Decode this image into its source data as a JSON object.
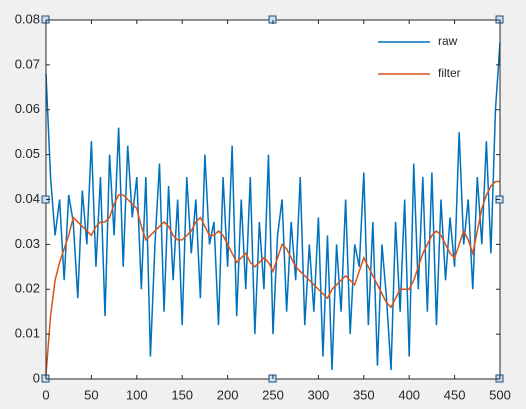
{
  "chart_data": {
    "type": "line",
    "x": [
      0,
      5,
      10,
      15,
      20,
      25,
      30,
      35,
      40,
      45,
      50,
      55,
      60,
      65,
      70,
      75,
      80,
      85,
      90,
      95,
      100,
      105,
      110,
      115,
      120,
      125,
      130,
      135,
      140,
      145,
      150,
      155,
      160,
      165,
      170,
      175,
      180,
      185,
      190,
      195,
      200,
      205,
      210,
      215,
      220,
      225,
      230,
      235,
      240,
      245,
      250,
      255,
      260,
      265,
      270,
      275,
      280,
      285,
      290,
      295,
      300,
      305,
      310,
      315,
      320,
      325,
      330,
      335,
      340,
      345,
      350,
      355,
      360,
      365,
      370,
      375,
      380,
      385,
      390,
      395,
      400,
      405,
      410,
      415,
      420,
      425,
      430,
      435,
      440,
      445,
      450,
      455,
      460,
      465,
      470,
      475,
      480,
      485,
      490,
      495,
      500
    ],
    "series": [
      {
        "name": "raw",
        "color": "#0072bd",
        "values": [
          0.068,
          0.045,
          0.032,
          0.04,
          0.022,
          0.041,
          0.035,
          0.018,
          0.042,
          0.03,
          0.053,
          0.025,
          0.045,
          0.014,
          0.05,
          0.032,
          0.056,
          0.025,
          0.052,
          0.036,
          0.045,
          0.02,
          0.045,
          0.005,
          0.03,
          0.048,
          0.015,
          0.043,
          0.022,
          0.04,
          0.012,
          0.045,
          0.028,
          0.04,
          0.018,
          0.05,
          0.03,
          0.035,
          0.012,
          0.045,
          0.025,
          0.052,
          0.014,
          0.04,
          0.02,
          0.045,
          0.01,
          0.035,
          0.02,
          0.05,
          0.01,
          0.032,
          0.04,
          0.015,
          0.035,
          0.022,
          0.045,
          0.012,
          0.03,
          0.015,
          0.036,
          0.005,
          0.032,
          0.002,
          0.03,
          0.015,
          0.04,
          0.01,
          0.03,
          0.025,
          0.046,
          0.012,
          0.035,
          0.003,
          0.03,
          0.018,
          0.002,
          0.035,
          0.015,
          0.04,
          0.005,
          0.048,
          0.02,
          0.045,
          0.015,
          0.046,
          0.012,
          0.04,
          0.022,
          0.036,
          0.025,
          0.055,
          0.03,
          0.04,
          0.02,
          0.045,
          0.03,
          0.053,
          0.028,
          0.06,
          0.075
        ]
      },
      {
        "name": "filter",
        "color": "#d95319",
        "values": [
          0.001,
          0.014,
          0.022,
          0.026,
          0.029,
          0.032,
          0.036,
          0.035,
          0.034,
          0.033,
          0.032,
          0.034,
          0.035,
          0.035,
          0.036,
          0.039,
          0.041,
          0.041,
          0.04,
          0.039,
          0.038,
          0.034,
          0.031,
          0.032,
          0.033,
          0.034,
          0.035,
          0.034,
          0.032,
          0.031,
          0.031,
          0.032,
          0.033,
          0.035,
          0.036,
          0.034,
          0.032,
          0.032,
          0.033,
          0.032,
          0.03,
          0.028,
          0.026,
          0.027,
          0.028,
          0.026,
          0.025,
          0.026,
          0.027,
          0.026,
          0.024,
          0.027,
          0.03,
          0.029,
          0.027,
          0.025,
          0.024,
          0.023,
          0.022,
          0.021,
          0.02,
          0.019,
          0.018,
          0.02,
          0.021,
          0.022,
          0.023,
          0.022,
          0.021,
          0.024,
          0.027,
          0.025,
          0.023,
          0.021,
          0.019,
          0.017,
          0.016,
          0.018,
          0.02,
          0.02,
          0.02,
          0.022,
          0.025,
          0.028,
          0.03,
          0.032,
          0.033,
          0.032,
          0.03,
          0.028,
          0.027,
          0.03,
          0.033,
          0.031,
          0.028,
          0.033,
          0.038,
          0.041,
          0.043,
          0.044,
          0.044
        ]
      }
    ],
    "xlim": [
      0,
      500
    ],
    "ylim": [
      0,
      0.08
    ],
    "xticks": [
      0,
      50,
      100,
      150,
      200,
      250,
      300,
      350,
      400,
      450,
      500
    ],
    "yticks": [
      0,
      0.01,
      0.02,
      0.03,
      0.04,
      0.05,
      0.06,
      0.07,
      0.08
    ],
    "legend": "upper-right"
  }
}
